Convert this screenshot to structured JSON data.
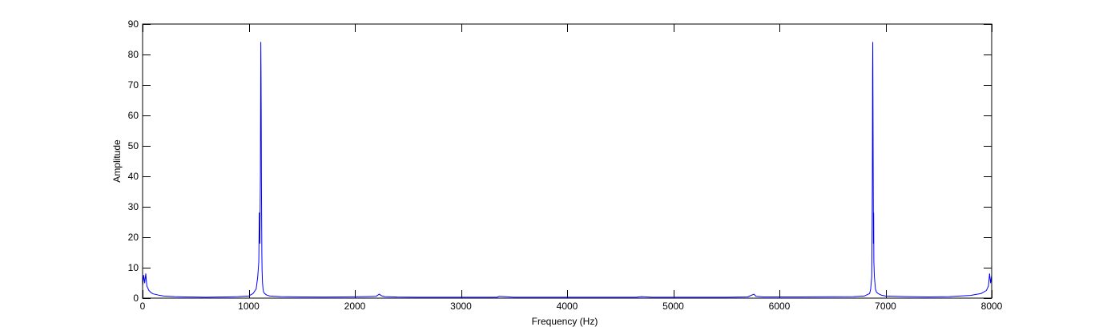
{
  "chart_data": {
    "type": "line",
    "title": "",
    "xlabel": "Frequency (Hz)",
    "ylabel": "Amplitude",
    "xlim": [
      0,
      8000
    ],
    "ylim": [
      0,
      90
    ],
    "xticks": [
      0,
      1000,
      2000,
      3000,
      4000,
      5000,
      6000,
      7000,
      8000
    ],
    "yticks": [
      0,
      10,
      20,
      30,
      40,
      50,
      60,
      70,
      80,
      90
    ],
    "grid": false,
    "box": true,
    "line_color": "#0000ff",
    "series": [
      {
        "x": [
          0,
          10,
          20,
          30,
          40,
          60,
          80,
          100,
          150,
          200,
          300,
          400,
          500,
          600,
          700,
          800,
          900,
          1000,
          1040,
          1070,
          1085,
          1095,
          1100,
          1105,
          1110,
          1112,
          1114,
          1116,
          1118,
          1120,
          1122,
          1124,
          1126,
          1130,
          1135,
          1140,
          1150,
          1170,
          1200,
          1300,
          1500,
          1700,
          1900,
          2100,
          2200,
          2230,
          2250,
          2280,
          2400,
          2600,
          2800,
          3000,
          3200,
          3340,
          3360,
          3500,
          3800,
          4000,
          4200,
          4500,
          4650,
          4700,
          4800,
          5000,
          5200,
          5500,
          5700,
          5760,
          5780,
          5850,
          6000,
          6200,
          6500,
          6700,
          6800,
          6850,
          6860,
          6870,
          6874,
          6876,
          6878,
          6880,
          6882,
          6884,
          6886,
          6888,
          6890,
          6895,
          6900,
          6905,
          6915,
          6930,
          6960,
          7000,
          7200,
          7400,
          7600,
          7800,
          7900,
          7950,
          7970,
          7980,
          7990,
          8000
        ],
        "y": [
          4,
          7.5,
          5,
          8,
          4,
          2.5,
          1.8,
          1.4,
          1,
          0.7,
          0.5,
          0.4,
          0.35,
          0.3,
          0.35,
          0.4,
          0.5,
          0.7,
          1.5,
          3,
          7,
          12,
          28,
          18,
          40,
          62,
          84,
          74,
          60,
          38,
          25,
          14,
          9,
          5,
          3,
          2,
          1.5,
          1,
          0.7,
          0.5,
          0.4,
          0.35,
          0.4,
          0.5,
          0.6,
          1.3,
          0.8,
          0.5,
          0.35,
          0.3,
          0.3,
          0.3,
          0.3,
          0.3,
          0.6,
          0.3,
          0.3,
          0.3,
          0.3,
          0.3,
          0.3,
          0.5,
          0.3,
          0.3,
          0.3,
          0.3,
          0.4,
          1.3,
          0.6,
          0.4,
          0.4,
          0.4,
          0.45,
          0.5,
          0.7,
          1.5,
          3,
          7,
          25,
          40,
          74,
          84,
          62,
          40,
          18,
          28,
          12,
          7,
          5,
          3,
          2,
          1.5,
          1,
          0.7,
          0.5,
          0.4,
          0.5,
          0.9,
          1.5,
          2.5,
          4,
          8,
          5,
          7.5
        ]
      }
    ]
  }
}
